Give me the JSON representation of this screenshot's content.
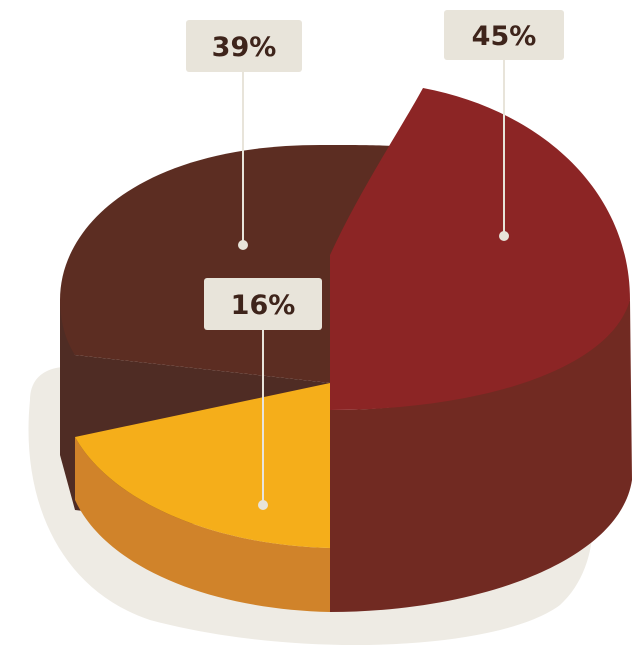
{
  "chart_data": {
    "type": "pie",
    "categories": [
      "",
      "",
      ""
    ],
    "values": [
      45,
      39,
      16
    ],
    "labels": [
      "45%",
      "39%",
      "16%"
    ],
    "colors": {
      "top": [
        "#8c2525",
        "#5c2d22",
        "#f5ae1a"
      ],
      "side": [
        "#712a22",
        "#4f2c24",
        "#d0832a"
      ],
      "shadow": "#eeebe4",
      "label_box": "#e8e4da",
      "label_text": "#3e241b",
      "leader": "#e8e4da"
    },
    "style": "3d-exploded",
    "exploded_slice": "45%"
  }
}
